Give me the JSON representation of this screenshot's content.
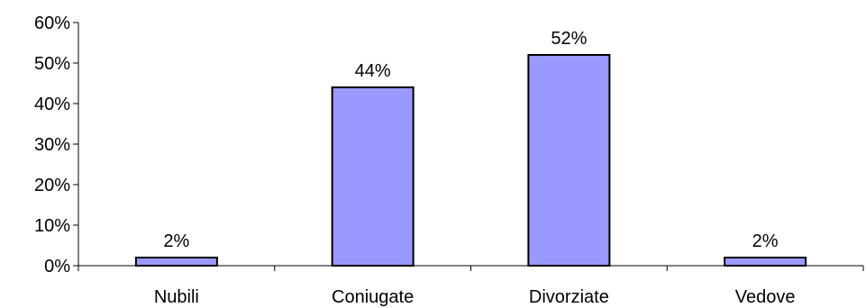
{
  "chart_data": {
    "type": "bar",
    "categories": [
      "Nubili",
      "Coniugate",
      "Divorziate",
      "Vedove"
    ],
    "values": [
      2,
      44,
      52,
      2
    ],
    "data_labels": [
      "2%",
      "44%",
      "52%",
      "2%"
    ],
    "y_ticks": [
      0,
      10,
      20,
      30,
      40,
      50,
      60
    ],
    "y_tick_labels": [
      "0%",
      "10%",
      "20%",
      "30%",
      "40%",
      "50%",
      "60%"
    ],
    "ylim": [
      0,
      60
    ],
    "grid": false,
    "legend": "none",
    "bar_color": "#9999ff",
    "bar_stroke": "#000000"
  }
}
